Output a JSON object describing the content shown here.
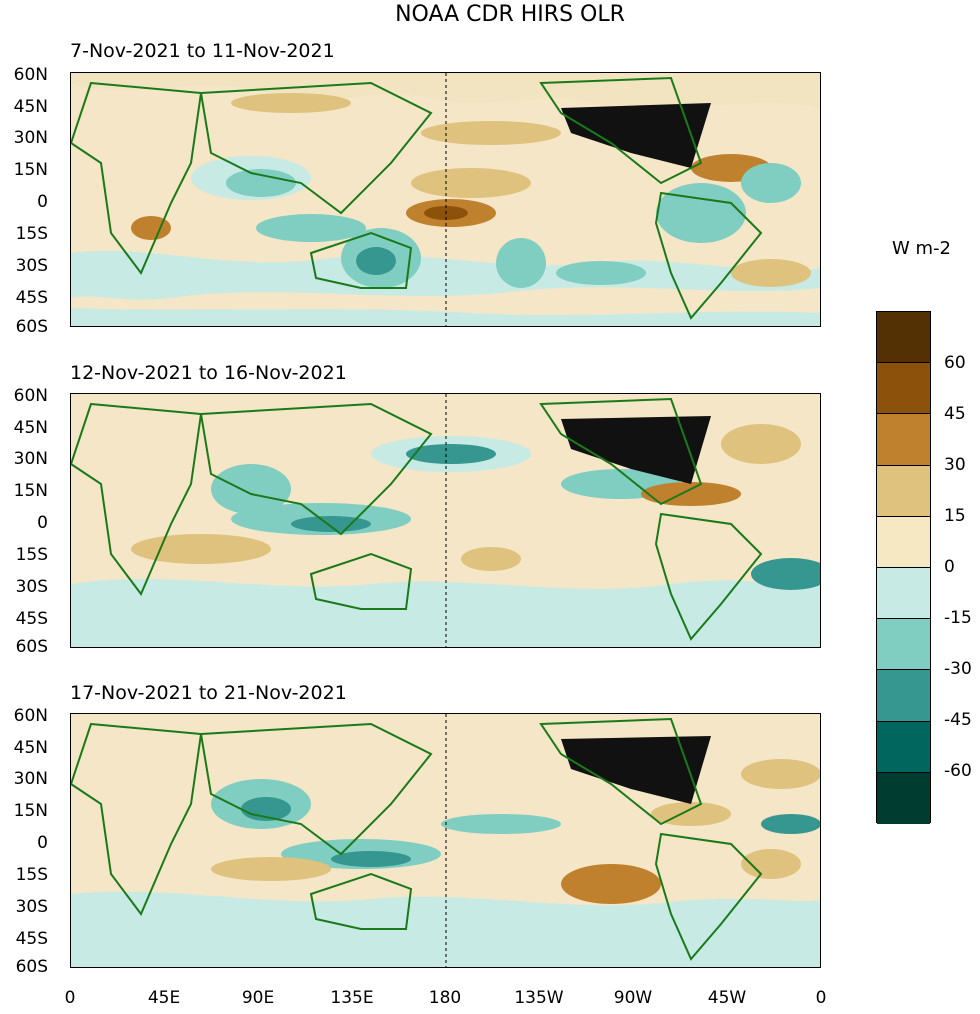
{
  "title": "NOAA CDR HIRS OLR",
  "panels": [
    {
      "label": "7-Nov-2021 to 11-Nov-2021"
    },
    {
      "label": "12-Nov-2021 to 16-Nov-2021"
    },
    {
      "label": "17-Nov-2021 to 21-Nov-2021"
    }
  ],
  "lat_labels": [
    "60N",
    "45N",
    "30N",
    "15N",
    "0",
    "15S",
    "30S",
    "45S",
    "60S"
  ],
  "lon_labels": [
    "0",
    "45E",
    "90E",
    "135E",
    "180",
    "135W",
    "90W",
    "45W",
    "0"
  ],
  "colorbar": {
    "title": "W m-2",
    "labels": [
      "60",
      "45",
      "30",
      "15",
      "0",
      "-15",
      "-30",
      "-45",
      "-60"
    ],
    "colors": [
      "#543005",
      "#8c510a",
      "#bf812d",
      "#dfc27d",
      "#f6e8c3",
      "#c7eae5",
      "#80cdc1",
      "#35978f",
      "#01665e",
      "#003c30"
    ]
  },
  "colors": {
    "coast": "#1a7a1a",
    "usa": "#111111",
    "land_anom_bg": "#f4e6c6"
  }
}
